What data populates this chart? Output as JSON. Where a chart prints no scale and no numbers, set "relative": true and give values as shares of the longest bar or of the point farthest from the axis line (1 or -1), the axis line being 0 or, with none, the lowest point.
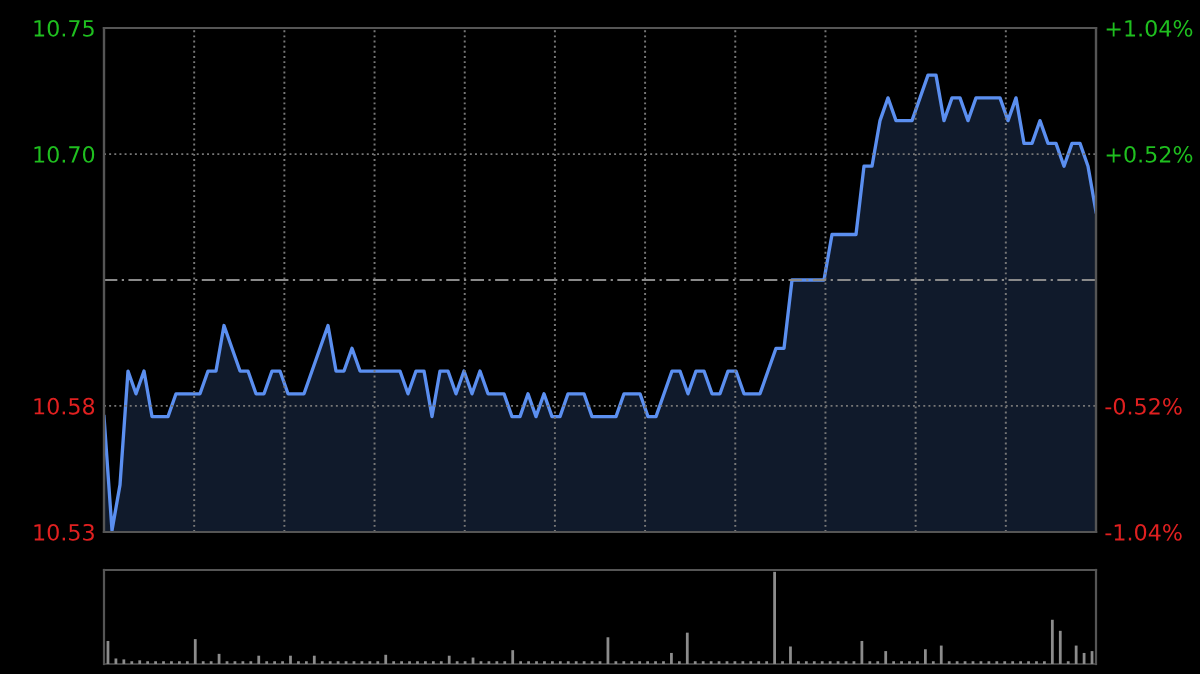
{
  "chart_data": [
    {
      "type": "area",
      "categories": [
        null,
        null,
        null,
        null,
        null,
        null,
        null,
        null,
        null,
        null,
        null,
        null,
        null,
        null,
        null,
        null,
        null,
        null,
        null,
        null,
        null,
        null,
        null,
        null,
        null,
        null,
        null,
        null,
        null,
        null,
        null,
        null,
        null,
        null,
        null,
        null,
        null,
        null,
        null,
        null,
        null,
        null,
        null,
        null,
        null,
        null,
        null,
        null,
        null,
        null,
        null,
        null,
        null,
        null,
        null,
        null,
        null,
        null,
        null,
        null,
        null,
        null,
        null,
        null,
        null,
        null,
        null,
        null,
        null,
        null,
        null,
        null,
        null,
        null,
        null,
        null,
        null,
        null,
        null,
        null,
        null,
        null,
        null,
        null,
        null,
        null,
        null,
        null,
        null,
        null,
        null,
        null,
        null,
        null,
        null,
        null,
        null,
        null,
        null,
        null,
        null,
        null,
        null,
        null,
        null,
        null,
        null,
        null,
        null,
        null,
        null,
        null,
        null,
        null,
        null,
        null,
        null,
        null,
        null,
        null,
        null,
        null,
        null,
        null,
        null
      ],
      "series": [
        {
          "color": "#5b8ff0",
          "values": [
            10.58,
            10.53,
            10.55,
            10.6,
            10.59,
            10.6,
            10.58,
            10.58,
            10.58,
            10.59,
            10.59,
            10.59,
            10.59,
            10.6,
            10.6,
            10.62,
            10.61,
            10.6,
            10.6,
            10.59,
            10.59,
            10.6,
            10.6,
            10.59,
            10.59,
            10.59,
            10.6,
            10.61,
            10.62,
            10.6,
            10.6,
            10.61,
            10.6,
            10.6,
            10.6,
            10.6,
            10.6,
            10.6,
            10.59,
            10.6,
            10.6,
            10.58,
            10.6,
            10.6,
            10.59,
            10.6,
            10.59,
            10.6,
            10.59,
            10.59,
            10.59,
            10.58,
            10.58,
            10.59,
            10.58,
            10.59,
            10.58,
            10.58,
            10.59,
            10.59,
            10.59,
            10.58,
            10.58,
            10.58,
            10.58,
            10.59,
            10.59,
            10.59,
            10.58,
            10.58,
            10.59,
            10.6,
            10.6,
            10.59,
            10.6,
            10.6,
            10.59,
            10.59,
            10.6,
            10.6,
            10.59,
            10.59,
            10.59,
            10.6,
            10.61,
            10.61,
            10.64,
            10.64,
            10.64,
            10.64,
            10.64,
            10.66,
            10.66,
            10.66,
            10.66,
            10.69,
            10.69,
            10.71,
            10.72,
            10.71,
            10.71,
            10.71,
            10.72,
            10.73,
            10.73,
            10.71,
            10.72,
            10.72,
            10.71,
            10.72,
            10.72,
            10.72,
            10.72,
            10.71,
            10.72,
            10.7,
            10.7,
            10.71,
            10.7,
            10.7,
            10.69,
            10.7,
            10.7,
            10.69,
            10.67
          ]
        }
      ],
      "ylim": [
        10.5293,
        10.7507
      ],
      "yticks": [
        {
          "value": 10.5293,
          "label": "10.53"
        },
        {
          "value": 10.5847,
          "label": "10.58"
        },
        {
          "value": 10.6953,
          "label": "10.70"
        },
        {
          "value": 10.7507,
          "label": "10.75"
        }
      ],
      "y2lim": [
        -1.04,
        1.04
      ],
      "y2ticks": [
        {
          "value": -1.04,
          "label": "-1.04%"
        },
        {
          "value": -0.52,
          "label": "-0.52%"
        },
        {
          "value": 0.52,
          "label": "+0.52%"
        },
        {
          "value": 1.04,
          "label": "+1.04%"
        }
      ],
      "ref_lines": [
        {
          "axis": "y",
          "value": 10.64,
          "line_style": "dashed",
          "color": "#8a8a8a"
        }
      ],
      "grid": true,
      "tick_labels": "y"
    },
    {
      "type": "bar",
      "relative": true,
      "categories": [
        null,
        null,
        null,
        null,
        null,
        null,
        null,
        null,
        null,
        null,
        null,
        null,
        null,
        null,
        null,
        null,
        null,
        null,
        null,
        null,
        null,
        null,
        null,
        null,
        null,
        null,
        null,
        null,
        null,
        null,
        null,
        null,
        null,
        null,
        null,
        null,
        null,
        null,
        null,
        null,
        null,
        null,
        null,
        null,
        null,
        null,
        null,
        null,
        null,
        null,
        null,
        null,
        null,
        null,
        null,
        null,
        null,
        null,
        null,
        null,
        null,
        null,
        null,
        null,
        null,
        null,
        null,
        null,
        null,
        null,
        null,
        null,
        null,
        null,
        null,
        null,
        null,
        null,
        null,
        null,
        null,
        null,
        null,
        null,
        null,
        null,
        null,
        null,
        null,
        null,
        null,
        null,
        null,
        null,
        null,
        null,
        null,
        null,
        null,
        null,
        null,
        null,
        null,
        null,
        null,
        null,
        null,
        null,
        null,
        null,
        null,
        null,
        null,
        null,
        null,
        null,
        null,
        null,
        null,
        null,
        null,
        null,
        null,
        null,
        null
      ],
      "series": [
        {
          "color": "#8c8c8c",
          "values": [
            0.25,
            0.06,
            0.05,
            0.03,
            0.04,
            0.03,
            0.03,
            0.03,
            0.03,
            0.03,
            0.03,
            0.27,
            0.03,
            0.03,
            0.11,
            0.03,
            0.03,
            0.03,
            0.03,
            0.09,
            0.03,
            0.03,
            0.03,
            0.09,
            0.03,
            0.03,
            0.09,
            0.03,
            0.03,
            0.03,
            0.03,
            0.03,
            0.03,
            0.03,
            0.03,
            0.1,
            0.03,
            0.03,
            0.03,
            0.03,
            0.03,
            0.03,
            0.03,
            0.09,
            0.03,
            0.03,
            0.07,
            0.03,
            0.03,
            0.03,
            0.03,
            0.15,
            0.03,
            0.03,
            0.03,
            0.03,
            0.03,
            0.03,
            0.03,
            0.03,
            0.03,
            0.03,
            0.03,
            0.29,
            0.03,
            0.03,
            0.03,
            0.03,
            0.03,
            0.03,
            0.03,
            0.12,
            0.03,
            0.34,
            0.03,
            0.03,
            0.03,
            0.03,
            0.03,
            0.03,
            0.03,
            0.03,
            0.03,
            0.03,
            1.0,
            0.03,
            0.19,
            0.03,
            0.03,
            0.03,
            0.03,
            0.03,
            0.03,
            0.03,
            0.03,
            0.25,
            0.03,
            0.03,
            0.14,
            0.03,
            0.03,
            0.03,
            0.03,
            0.16,
            0.03,
            0.2,
            0.03,
            0.03,
            0.03,
            0.03,
            0.03,
            0.03,
            0.03,
            0.03,
            0.03,
            0.03,
            0.03,
            0.03,
            0.03,
            0.48,
            0.36,
            0.03,
            0.2,
            0.12,
            0.14
          ]
        }
      ],
      "tick_labels": false
    }
  ]
}
